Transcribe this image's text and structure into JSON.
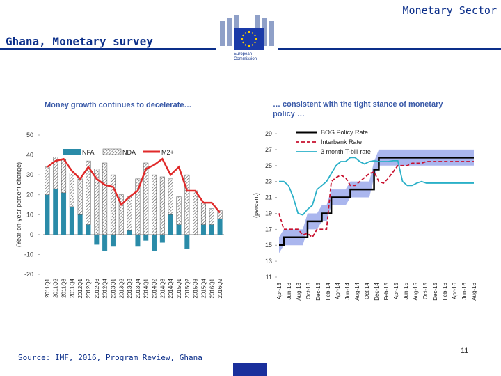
{
  "header": {
    "section": "Monetary Sector",
    "title": "Ghana, Monetary survey",
    "logo_text_line1": "European",
    "logo_text_line2": "Commission"
  },
  "footer": {
    "source": "Source: IMF, 2016, Program Review, Ghana",
    "page_number": "11"
  },
  "colors": {
    "brand": "#0c2f8a",
    "nfa": "#2a8ba8",
    "m2": "#e02a2a",
    "policy": "#000000",
    "interbank": "#c8102e",
    "tbill": "#2ab0c8",
    "band": "#8e9ee8"
  },
  "chart_data": [
    {
      "type": "bar",
      "title": "Money growth continues to decelerate…",
      "ylabel": "(Year-on-year percent change)",
      "ylim": [
        -20,
        50
      ],
      "yticks": [
        50,
        40,
        30,
        20,
        10,
        0,
        -10,
        -20
      ],
      "categories": [
        "2011Q1",
        "2011Q2",
        "2011Q3",
        "2011Q4",
        "2012Q1",
        "2012Q2",
        "2012Q3",
        "2012Q4",
        "2013Q1",
        "2013Q2",
        "2013Q3",
        "2013Q4",
        "2014Q1",
        "2014Q2",
        "2014Q3",
        "2014Q4",
        "2015Q1",
        "2015Q2",
        "2015Q3",
        "2015Q4",
        "2016Q1",
        "2016Q2"
      ],
      "series": [
        {
          "name": "NFA",
          "values": [
            20,
            23,
            21,
            14,
            10,
            5,
            -5,
            -8,
            -6,
            0,
            2,
            -6,
            -3,
            -8,
            -4,
            10,
            5,
            -7,
            0,
            5,
            5,
            8
          ]
        },
        {
          "name": "NDA",
          "values": [
            14,
            16,
            17,
            17,
            18,
            32,
            33,
            36,
            30,
            20,
            17,
            28,
            36,
            30,
            29,
            18,
            14,
            30,
            22,
            11,
            8,
            4
          ]
        },
        {
          "name": "M2+",
          "values": [
            34,
            37,
            38,
            32,
            28,
            34,
            28,
            25,
            24,
            15,
            19,
            22,
            33,
            35,
            38,
            30,
            34,
            22,
            22,
            16,
            16,
            11
          ]
        }
      ]
    },
    {
      "type": "line",
      "title": "… consistent with the tight stance of monetary policy …",
      "ylabel": "(percent)",
      "ylim": [
        11,
        29
      ],
      "yticks": [
        29,
        27,
        25,
        23,
        21,
        19,
        17,
        15,
        13,
        11
      ],
      "x_ticks": [
        "Apr-13",
        "Jun-13",
        "Aug-13",
        "Oct-13",
        "Dec-13",
        "Feb-14",
        "Apr-14",
        "Jun-14",
        "Aug-14",
        "Oct-14",
        "Dec-14",
        "Feb-15",
        "Apr-15",
        "Jun-15",
        "Aug-15",
        "Oct-15",
        "Dec-15",
        "Feb-16",
        "Apr-16",
        "Jun-16",
        "Aug-16"
      ],
      "series": [
        {
          "name": "BOG Policy Rate",
          "values": [
            15,
            16,
            16,
            16,
            16,
            16,
            18,
            18,
            18,
            19,
            19,
            21,
            21,
            21,
            21,
            22,
            22,
            22,
            22,
            22,
            24.5,
            26,
            26,
            26,
            26,
            26,
            26,
            26,
            26,
            26,
            26,
            26,
            26,
            26,
            26,
            26,
            26,
            26,
            26,
            26,
            26,
            26
          ]
        },
        {
          "name": "Interbank Rate",
          "values": [
            19,
            17,
            17,
            17,
            17,
            16.3,
            16.5,
            16,
            17,
            17,
            17,
            23,
            23.5,
            23.8,
            23.5,
            22.5,
            22.5,
            23,
            23.5,
            24,
            24.2,
            23,
            22.8,
            23.4,
            24.2,
            25,
            25,
            25,
            25.3,
            25.3,
            25.3,
            25.5,
            25.5,
            25.5,
            25.5,
            25.5,
            25.5,
            25.5,
            25.5,
            25.5,
            25.5,
            25.5
          ]
        },
        {
          "name": "3 month T-bill rate",
          "values": [
            23,
            23,
            22.5,
            21,
            19,
            18.8,
            19.5,
            20,
            22,
            22.5,
            23,
            24,
            25,
            25.5,
            25.5,
            26,
            26,
            25.5,
            25.2,
            25.5,
            25.6,
            25.5,
            25.5,
            25.5,
            25.6,
            25.6,
            23,
            22.5,
            22.5,
            22.8,
            23,
            22.8,
            22.8,
            22.8,
            22.8,
            22.8,
            22.8,
            22.8,
            22.8,
            22.8,
            22.8,
            22.8
          ]
        }
      ]
    }
  ]
}
